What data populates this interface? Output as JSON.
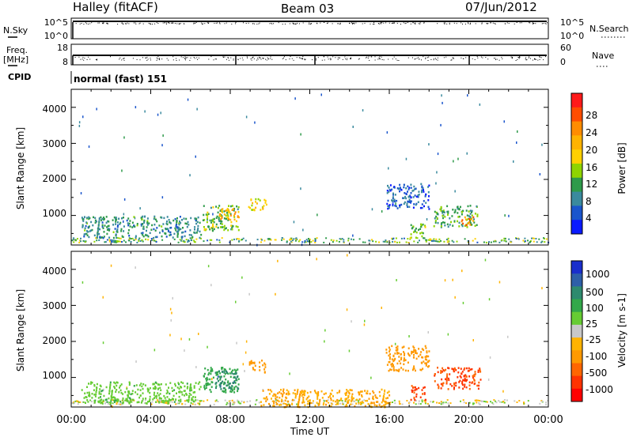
{
  "header": {
    "station": "Halley (fitACF)",
    "beam": "Beam 03",
    "date": "07/Jun/2012"
  },
  "sky_panel": {
    "left_label": "N.Sky",
    "right_label": "N.Search",
    "left_ticks": [
      "10^5",
      "10^0"
    ],
    "right_ticks": [
      "10^5",
      "10^0"
    ]
  },
  "freq_panel": {
    "left_label_1": "Freq.",
    "left_label_2": "[MHz]",
    "right_label": "Nave",
    "left_ticks": [
      "18",
      "8"
    ],
    "right_ticks": [
      "60",
      "0"
    ]
  },
  "cpid": {
    "label": "CPID",
    "value": "normal (fast) 151"
  },
  "time_axis": {
    "label": "Time UT",
    "ticks": [
      "00:00",
      "04:00",
      "08:00",
      "12:00",
      "16:00",
      "20:00",
      "00:00"
    ]
  },
  "chart_data": [
    {
      "type": "heatmap",
      "title": "Power",
      "ylabel": "Slant Range [km]",
      "xlabel": "",
      "colorbar_label": "Power [dB]",
      "colorbar_ticks": [
        "28",
        "24",
        "20",
        "16",
        "12",
        "8",
        "4"
      ],
      "colorbar_colors": [
        "#ff1a1a",
        "#ff4d00",
        "#ff8c00",
        "#ffb300",
        "#ffd000",
        "#8fd400",
        "#2e9a4a",
        "#3a8a9e",
        "#1a55cc",
        "#0a1aff"
      ],
      "ylim": [
        180,
        4500
      ],
      "yticks": [
        "1000",
        "2000",
        "3000",
        "4000"
      ],
      "xlim_hours": [
        0,
        24
      ],
      "grid": false,
      "regions": [
        {
          "t_start": 6.6,
          "t_end": 8.4,
          "r_min": 600,
          "r_max": 1300,
          "level_dB": 12
        },
        {
          "t_start": 7.4,
          "t_end": 8.4,
          "r_min": 900,
          "r_max": 1250,
          "level_dB": 20
        },
        {
          "t_start": 8.9,
          "t_end": 9.8,
          "r_min": 1150,
          "r_max": 1500,
          "level_dB": 16
        },
        {
          "t_start": 0.5,
          "t_end": 6.5,
          "r_min": 400,
          "r_max": 1000,
          "level_dB": 8
        },
        {
          "t_start": 15.8,
          "t_end": 18.0,
          "r_min": 1200,
          "r_max": 1900,
          "level_dB": 4
        },
        {
          "t_start": 17.0,
          "t_end": 17.8,
          "r_min": 400,
          "r_max": 800,
          "level_dB": 12
        },
        {
          "t_start": 18.2,
          "t_end": 20.4,
          "r_min": 700,
          "r_max": 1300,
          "level_dB": 10
        },
        {
          "t_start": 19.6,
          "t_end": 20.3,
          "r_min": 750,
          "r_max": 1000,
          "level_dB": 24
        }
      ]
    },
    {
      "type": "heatmap",
      "title": "Velocity",
      "ylabel": "Slant Range [km]",
      "xlabel": "Time UT",
      "colorbar_label": "Velocity [m s-1]",
      "colorbar_ticks": [
        "1000",
        "500",
        "100",
        "25",
        "-25",
        "-100",
        "-500",
        "-1000"
      ],
      "colorbar_colors": [
        "#1a2ecc",
        "#2e5fa8",
        "#2e8a6e",
        "#33a84a",
        "#66cc33",
        "#c8c8c8",
        "#ffb300",
        "#ff9900",
        "#ff6600",
        "#ff3300",
        "#ff0000"
      ],
      "ylim": [
        180,
        4500
      ],
      "yticks": [
        "1000",
        "2000",
        "3000",
        "4000"
      ],
      "xlim_hours": [
        0,
        24
      ],
      "grid": false,
      "regions": [
        {
          "t_start": 6.6,
          "t_end": 8.4,
          "r_min": 600,
          "r_max": 1300,
          "velocity": 100
        },
        {
          "t_start": 7.2,
          "t_end": 8.4,
          "r_min": 700,
          "r_max": 1200,
          "velocity": 300
        },
        {
          "t_start": 8.9,
          "t_end": 9.8,
          "r_min": 1150,
          "r_max": 1500,
          "velocity": -100
        },
        {
          "t_start": 0.5,
          "t_end": 6.5,
          "r_min": 300,
          "r_max": 900,
          "velocity": 50
        },
        {
          "t_start": 15.8,
          "t_end": 18.0,
          "r_min": 1200,
          "r_max": 1900,
          "velocity": -100
        },
        {
          "t_start": 17.0,
          "t_end": 17.8,
          "r_min": 400,
          "r_max": 800,
          "velocity": -400
        },
        {
          "t_start": 18.2,
          "t_end": 20.6,
          "r_min": 700,
          "r_max": 1300,
          "velocity": -400
        },
        {
          "t_start": 9.5,
          "t_end": 16.0,
          "r_min": 200,
          "r_max": 700,
          "velocity": -60
        }
      ]
    }
  ]
}
